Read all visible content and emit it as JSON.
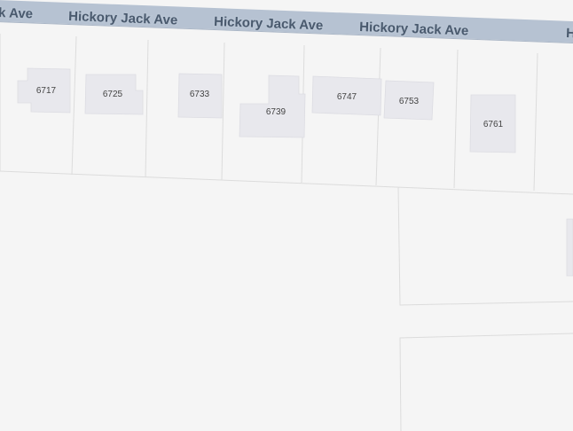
{
  "street": {
    "name": "Hickory Jack Ave",
    "labels": [
      "k Ave",
      "Hickory Jack Ave",
      "Hickory Jack Ave",
      "Hickory Jack Ave",
      "H"
    ],
    "road_color": "#b6c2d2",
    "label_color": "#4a5a6e"
  },
  "buildings": [
    {
      "number": "6717"
    },
    {
      "number": "6725"
    },
    {
      "number": "6733"
    },
    {
      "number": "6739"
    },
    {
      "number": "6747"
    },
    {
      "number": "6753"
    },
    {
      "number": "6761"
    }
  ],
  "colors": {
    "background": "#f5f5f5",
    "building_fill": "#e8e8ed",
    "lot_line": "#dcdcdc"
  }
}
